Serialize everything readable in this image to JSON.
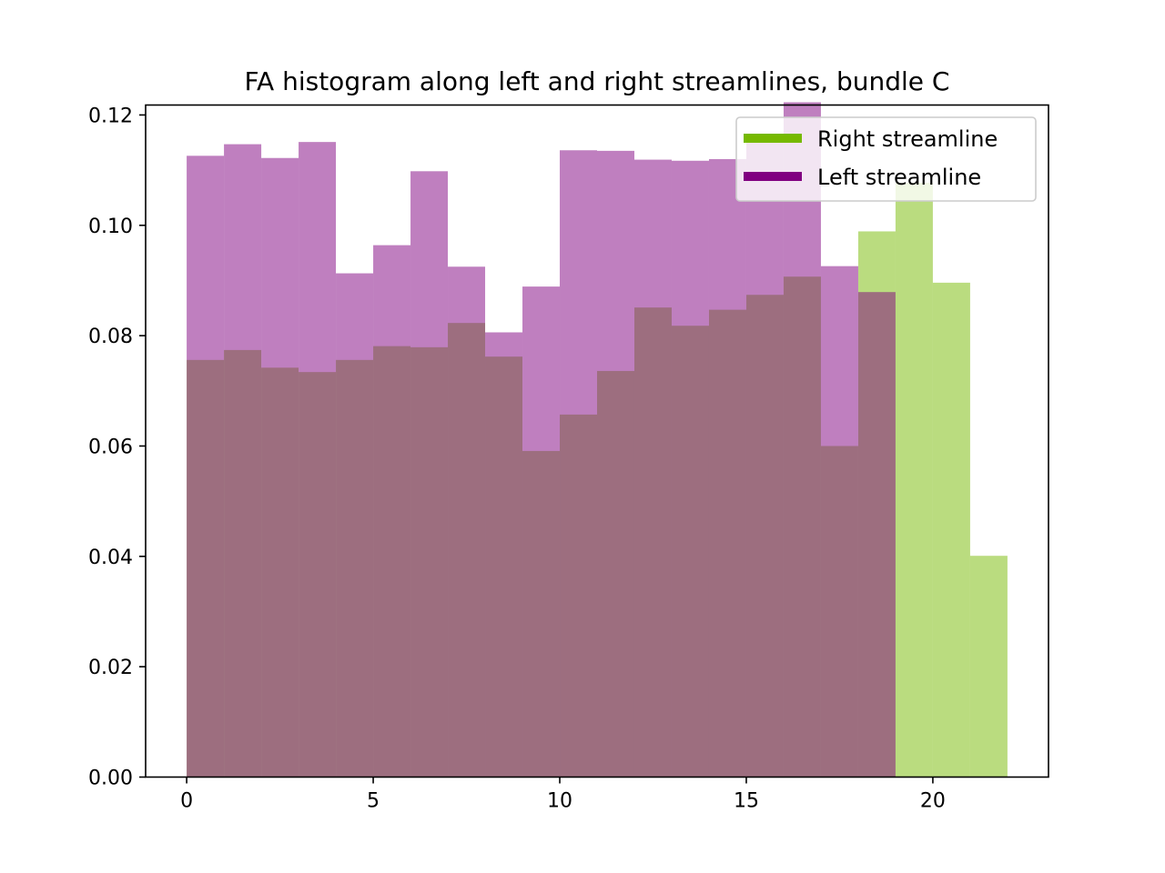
{
  "chart_data": {
    "type": "bar",
    "title": "FA histogram along left and right streamlines, bundle C",
    "xlabel": "",
    "ylabel": "",
    "xlim": [
      -1.1,
      23.1
    ],
    "ylim": [
      0,
      0.1218
    ],
    "xticks": [
      0,
      5,
      10,
      15,
      20
    ],
    "yticks": [
      0.0,
      0.02,
      0.04,
      0.06,
      0.08,
      0.1,
      0.12
    ],
    "ytick_labels": [
      "0.00",
      "0.02",
      "0.04",
      "0.06",
      "0.08",
      "0.10",
      "0.12"
    ],
    "grid": false,
    "legend_position": "top-right",
    "bin_width": 1,
    "series": [
      {
        "name": "Right streamline",
        "color": "#76b900",
        "opacity": 0.5,
        "bin_starts": [
          0,
          1,
          2,
          3,
          4,
          5,
          6,
          7,
          8,
          9,
          10,
          11,
          12,
          13,
          14,
          15,
          16,
          17,
          18,
          19,
          20,
          21
        ],
        "values": [
          0.0756,
          0.0774,
          0.0742,
          0.0734,
          0.0756,
          0.0781,
          0.0779,
          0.0823,
          0.0762,
          0.0591,
          0.0657,
          0.0736,
          0.0851,
          0.0818,
          0.0847,
          0.0874,
          0.0907,
          0.06,
          0.0989,
          0.1077,
          0.0896,
          0.0401
        ]
      },
      {
        "name": "Left streamline",
        "color": "#800080",
        "opacity": 0.5,
        "bin_starts": [
          0,
          1,
          2,
          3,
          4,
          5,
          6,
          7,
          8,
          9,
          10,
          11,
          12,
          13,
          14,
          15,
          16,
          17,
          18
        ],
        "values": [
          0.1126,
          0.1147,
          0.1122,
          0.1151,
          0.0913,
          0.0964,
          0.1098,
          0.0925,
          0.0806,
          0.0889,
          0.1136,
          0.1135,
          0.1119,
          0.1117,
          0.112,
          0.1153,
          0.1223,
          0.0926,
          0.0879
        ]
      }
    ]
  }
}
